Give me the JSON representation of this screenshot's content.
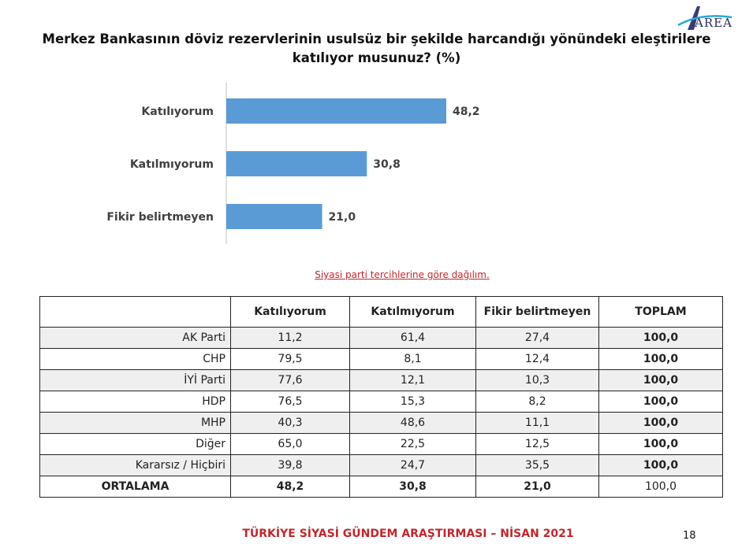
{
  "brand": {
    "logo_text": "AREA",
    "accent": "#2a2a5a"
  },
  "chart_data": {
    "type": "bar",
    "orientation": "horizontal",
    "title": "Merkez Bankasının döviz rezervlerinin usulsüz bir şekilde harcandığı yönündeki eleştirilere katılıyor musunuz? (%)",
    "categories": [
      "Katılıyorum",
      "Katılmıyorum",
      "Fikir belirtmeyen"
    ],
    "values": [
      48.2,
      30.8,
      21.0
    ],
    "value_labels": [
      "48,2",
      "30,8",
      "21,0"
    ],
    "bar_color": "#5b9bd5",
    "grid": false,
    "xlim": [
      0,
      60
    ]
  },
  "subtitle": "Siyasi parti tercihlerine göre dağılım.",
  "table": {
    "headers": [
      "",
      "Katılıyorum",
      "Katılmıyorum",
      "Fikir belirtmeyen",
      "TOPLAM"
    ],
    "rows": [
      [
        "AK Parti",
        "11,2",
        "61,4",
        "27,4",
        "100,0"
      ],
      [
        "CHP",
        "79,5",
        "8,1",
        "12,4",
        "100,0"
      ],
      [
        "İYİ Parti",
        "77,6",
        "12,1",
        "10,3",
        "100,0"
      ],
      [
        "HDP",
        "76,5",
        "15,3",
        "8,2",
        "100,0"
      ],
      [
        "MHP",
        "40,3",
        "48,6",
        "11,1",
        "100,0"
      ],
      [
        "Diğer",
        "65,0",
        "22,5",
        "12,5",
        "100,0"
      ],
      [
        "Kararsız / Hiçbiri",
        "39,8",
        "24,7",
        "35,5",
        "100,0"
      ]
    ],
    "average": [
      "ORTALAMA",
      "48,2",
      "30,8",
      "21,0",
      "100,0"
    ]
  },
  "footer": {
    "text": "TÜRKİYE SİYASİ GÜNDEM ARAŞTIRMASI – NİSAN 2021",
    "page": "18",
    "color": "#c0272d"
  }
}
